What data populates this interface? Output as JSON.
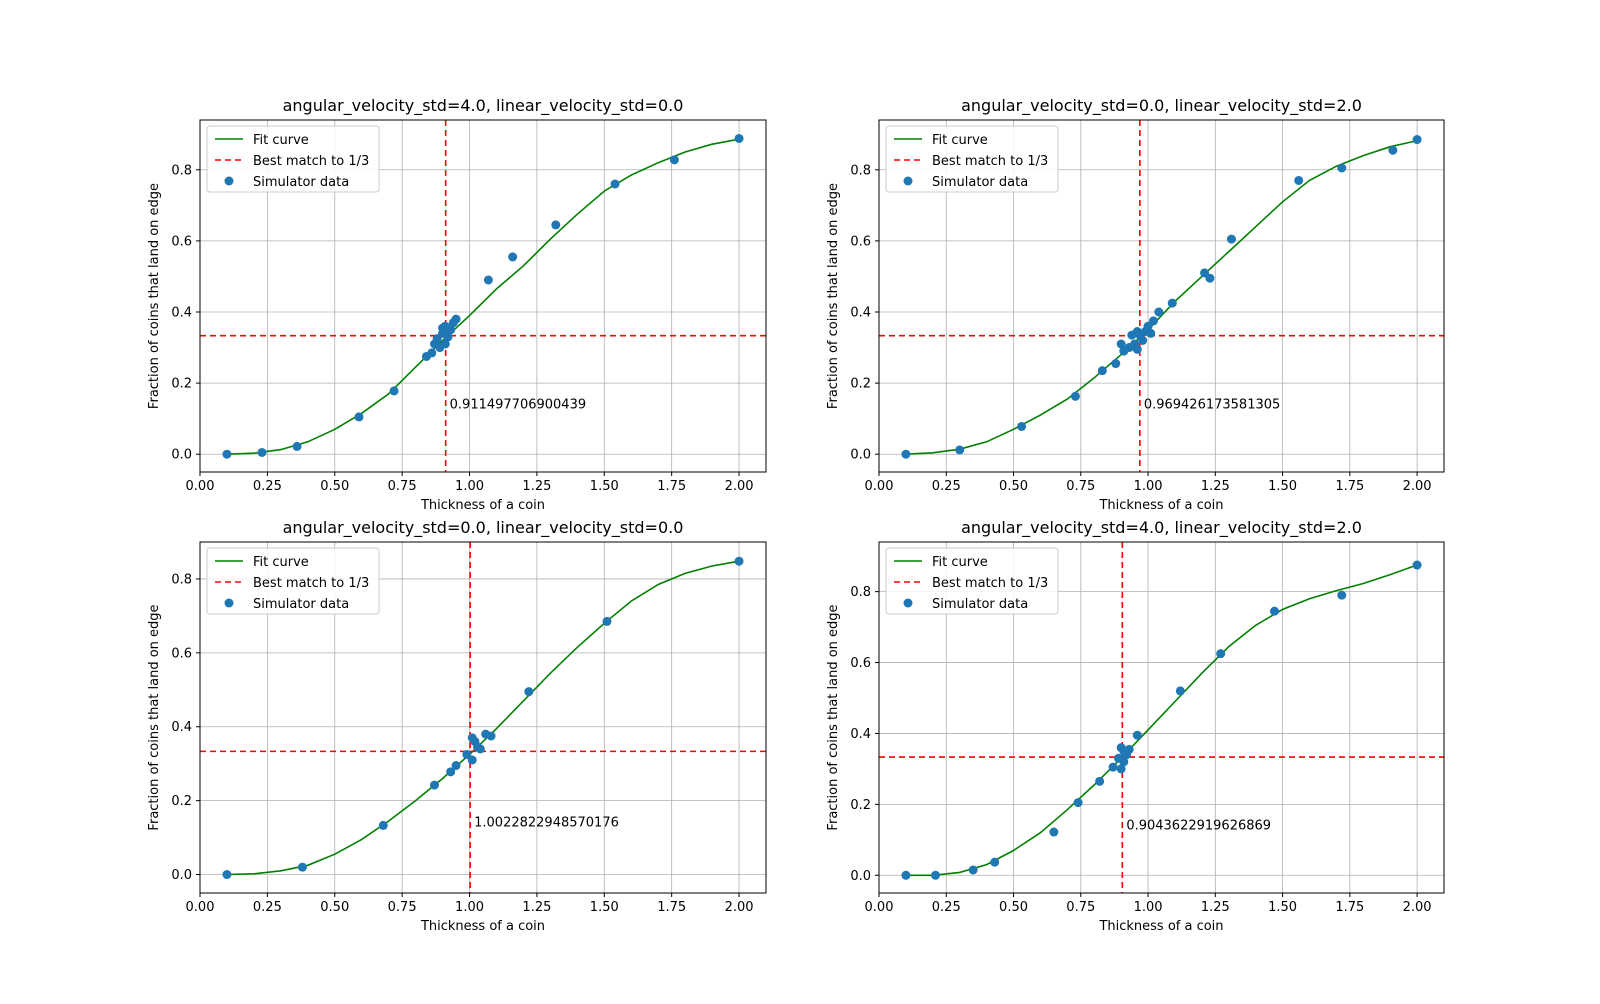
{
  "chart_data": [
    {
      "type": "scatter",
      "title": "angular_velocity_std=4.0, linear_velocity_std=0.0",
      "xlabel": "Thickness of a coin",
      "ylabel": "Fraction of coins that land on edge",
      "xlim": [
        0.0,
        2.1
      ],
      "ylim": [
        -0.05,
        0.94
      ],
      "xticks": [
        0.0,
        0.25,
        0.5,
        0.75,
        1.0,
        1.25,
        1.5,
        1.75,
        2.0
      ],
      "xtick_labels": [
        "0.00",
        "0.25",
        "0.50",
        "0.75",
        "1.00",
        "1.25",
        "1.50",
        "1.75",
        "2.00"
      ],
      "yticks": [
        0.0,
        0.2,
        0.4,
        0.6,
        0.8
      ],
      "ytick_labels": [
        "0.0",
        "0.2",
        "0.4",
        "0.6",
        "0.8"
      ],
      "grid": true,
      "legend": {
        "placement": "upper-left",
        "entries": [
          "Fit curve",
          "Best match to 1/3",
          "Simulator data"
        ]
      },
      "colors": {
        "fit": "#008000",
        "best": "#ff0000",
        "points": "#1f77b4"
      },
      "best_x": 0.911497706900439,
      "best_label": "0.911497706900439",
      "hline_y": 0.3333,
      "fit": {
        "x": [
          0.1,
          0.2,
          0.3,
          0.4,
          0.5,
          0.6,
          0.7,
          0.8,
          0.9,
          1.0,
          1.1,
          1.2,
          1.3,
          1.4,
          1.5,
          1.6,
          1.7,
          1.8,
          1.9,
          2.0
        ],
        "y": [
          0.0,
          0.003,
          0.013,
          0.035,
          0.07,
          0.115,
          0.17,
          0.245,
          0.32,
          0.39,
          0.465,
          0.53,
          0.605,
          0.675,
          0.74,
          0.785,
          0.82,
          0.85,
          0.872,
          0.886
        ]
      },
      "points": {
        "x": [
          0.1,
          0.23,
          0.36,
          0.59,
          0.72,
          0.84,
          0.86,
          0.87,
          0.88,
          0.89,
          0.9,
          0.9,
          0.91,
          0.91,
          0.92,
          0.92,
          0.93,
          0.94,
          0.95,
          1.07,
          1.16,
          1.32,
          1.54,
          1.76,
          2.0
        ],
        "y": [
          0.0,
          0.005,
          0.022,
          0.105,
          0.178,
          0.275,
          0.285,
          0.31,
          0.325,
          0.3,
          0.34,
          0.355,
          0.31,
          0.36,
          0.33,
          0.35,
          0.35,
          0.37,
          0.38,
          0.49,
          0.555,
          0.645,
          0.76,
          0.828,
          0.888
        ]
      }
    },
    {
      "type": "scatter",
      "title": "angular_velocity_std=0.0, linear_velocity_std=2.0",
      "xlabel": "Thickness of a coin",
      "ylabel": "Fraction of coins that land on edge",
      "xlim": [
        0.0,
        2.1
      ],
      "ylim": [
        -0.05,
        0.94
      ],
      "xticks": [
        0.0,
        0.25,
        0.5,
        0.75,
        1.0,
        1.25,
        1.5,
        1.75,
        2.0
      ],
      "xtick_labels": [
        "0.00",
        "0.25",
        "0.50",
        "0.75",
        "1.00",
        "1.25",
        "1.50",
        "1.75",
        "2.00"
      ],
      "yticks": [
        0.0,
        0.2,
        0.4,
        0.6,
        0.8
      ],
      "ytick_labels": [
        "0.0",
        "0.2",
        "0.4",
        "0.6",
        "0.8"
      ],
      "grid": true,
      "legend": {
        "placement": "upper-left",
        "entries": [
          "Fit curve",
          "Best match to 1/3",
          "Simulator data"
        ]
      },
      "colors": {
        "fit": "#008000",
        "best": "#ff0000",
        "points": "#1f77b4"
      },
      "best_x": 0.969426173581305,
      "best_label": "0.969426173581305",
      "hline_y": 0.3333,
      "fit": {
        "x": [
          0.1,
          0.2,
          0.3,
          0.4,
          0.5,
          0.6,
          0.7,
          0.8,
          0.9,
          1.0,
          1.1,
          1.2,
          1.3,
          1.4,
          1.5,
          1.6,
          1.7,
          1.8,
          1.9,
          2.0
        ],
        "y": [
          0.0,
          0.004,
          0.014,
          0.035,
          0.07,
          0.11,
          0.155,
          0.215,
          0.28,
          0.35,
          0.43,
          0.5,
          0.57,
          0.64,
          0.71,
          0.77,
          0.81,
          0.84,
          0.865,
          0.882
        ]
      },
      "points": {
        "x": [
          0.1,
          0.3,
          0.53,
          0.73,
          0.83,
          0.88,
          0.9,
          0.91,
          0.93,
          0.94,
          0.95,
          0.96,
          0.96,
          0.97,
          0.98,
          0.99,
          1.0,
          1.01,
          1.02,
          1.04,
          1.09,
          1.21,
          1.23,
          1.31,
          1.56,
          1.72,
          1.91,
          2.0
        ],
        "y": [
          0.0,
          0.012,
          0.078,
          0.163,
          0.235,
          0.255,
          0.31,
          0.29,
          0.3,
          0.335,
          0.31,
          0.295,
          0.345,
          0.335,
          0.32,
          0.345,
          0.36,
          0.34,
          0.375,
          0.4,
          0.425,
          0.51,
          0.495,
          0.605,
          0.77,
          0.805,
          0.855,
          0.885
        ]
      }
    },
    {
      "type": "scatter",
      "title": "angular_velocity_std=0.0, linear_velocity_std=0.0",
      "xlabel": "Thickness of a coin",
      "ylabel": "Fraction of coins that land on edge",
      "xlim": [
        0.0,
        2.1
      ],
      "ylim": [
        -0.05,
        0.9
      ],
      "xticks": [
        0.0,
        0.25,
        0.5,
        0.75,
        1.0,
        1.25,
        1.5,
        1.75,
        2.0
      ],
      "xtick_labels": [
        "0.00",
        "0.25",
        "0.50",
        "0.75",
        "1.00",
        "1.25",
        "1.50",
        "1.75",
        "2.00"
      ],
      "yticks": [
        0.0,
        0.2,
        0.4,
        0.6,
        0.8
      ],
      "ytick_labels": [
        "0.0",
        "0.2",
        "0.4",
        "0.6",
        "0.8"
      ],
      "grid": true,
      "legend": {
        "placement": "upper-left",
        "entries": [
          "Fit curve",
          "Best match to 1/3",
          "Simulator data"
        ]
      },
      "colors": {
        "fit": "#008000",
        "best": "#ff0000",
        "points": "#1f77b4"
      },
      "best_x": 1.0022822948570176,
      "best_label": "1.0022822948570176",
      "hline_y": 0.3333,
      "fit": {
        "x": [
          0.1,
          0.2,
          0.3,
          0.4,
          0.5,
          0.6,
          0.7,
          0.8,
          0.9,
          1.0,
          1.1,
          1.2,
          1.3,
          1.4,
          1.5,
          1.6,
          1.7,
          1.8,
          1.9,
          2.0
        ],
        "y": [
          0.0,
          0.002,
          0.01,
          0.025,
          0.055,
          0.095,
          0.145,
          0.2,
          0.26,
          0.325,
          0.395,
          0.47,
          0.545,
          0.615,
          0.68,
          0.74,
          0.785,
          0.815,
          0.835,
          0.848
        ]
      },
      "points": {
        "x": [
          0.1,
          0.38,
          0.68,
          0.87,
          0.93,
          0.95,
          0.99,
          1.01,
          1.01,
          1.02,
          1.03,
          1.04,
          1.06,
          1.08,
          1.22,
          1.51,
          2.0
        ],
        "y": [
          0.0,
          0.02,
          0.133,
          0.242,
          0.278,
          0.295,
          0.325,
          0.31,
          0.37,
          0.36,
          0.345,
          0.34,
          0.38,
          0.375,
          0.495,
          0.685,
          0.848
        ]
      }
    },
    {
      "type": "scatter",
      "title": "angular_velocity_std=4.0, linear_velocity_std=2.0",
      "xlabel": "Thickness of a coin",
      "ylabel": "Fraction of coins that land on edge",
      "xlim": [
        0.0,
        2.1
      ],
      "ylim": [
        -0.05,
        0.94
      ],
      "xticks": [
        0.0,
        0.25,
        0.5,
        0.75,
        1.0,
        1.25,
        1.5,
        1.75,
        2.0
      ],
      "xtick_labels": [
        "0.00",
        "0.25",
        "0.50",
        "0.75",
        "1.00",
        "1.25",
        "1.50",
        "1.75",
        "2.00"
      ],
      "yticks": [
        0.0,
        0.2,
        0.4,
        0.6,
        0.8
      ],
      "ytick_labels": [
        "0.0",
        "0.2",
        "0.4",
        "0.6",
        "0.8"
      ],
      "grid": true,
      "legend": {
        "placement": "upper-left",
        "entries": [
          "Fit curve",
          "Best match to 1/3",
          "Simulator data"
        ]
      },
      "colors": {
        "fit": "#008000",
        "best": "#ff0000",
        "points": "#1f77b4"
      },
      "best_x": 0.9043622919626869,
      "best_label": "0.9043622919626869",
      "hline_y": 0.3333,
      "fit": {
        "x": [
          0.1,
          0.2,
          0.3,
          0.4,
          0.5,
          0.6,
          0.7,
          0.8,
          0.9,
          1.0,
          1.1,
          1.2,
          1.3,
          1.4,
          1.5,
          1.6,
          1.7,
          1.8,
          1.9,
          2.0
        ],
        "y": [
          0.0,
          0.0,
          0.008,
          0.03,
          0.07,
          0.12,
          0.185,
          0.255,
          0.33,
          0.41,
          0.49,
          0.57,
          0.645,
          0.705,
          0.75,
          0.78,
          0.803,
          0.823,
          0.848,
          0.875
        ]
      },
      "points": {
        "x": [
          0.1,
          0.21,
          0.35,
          0.43,
          0.65,
          0.74,
          0.82,
          0.87,
          0.89,
          0.9,
          0.9,
          0.91,
          0.91,
          0.92,
          0.93,
          0.96,
          1.12,
          1.27,
          1.47,
          1.72,
          2.0
        ],
        "y": [
          0.0,
          0.0,
          0.015,
          0.037,
          0.122,
          0.205,
          0.265,
          0.305,
          0.33,
          0.3,
          0.36,
          0.32,
          0.35,
          0.34,
          0.355,
          0.395,
          0.52,
          0.625,
          0.745,
          0.79,
          0.875
        ]
      }
    }
  ]
}
